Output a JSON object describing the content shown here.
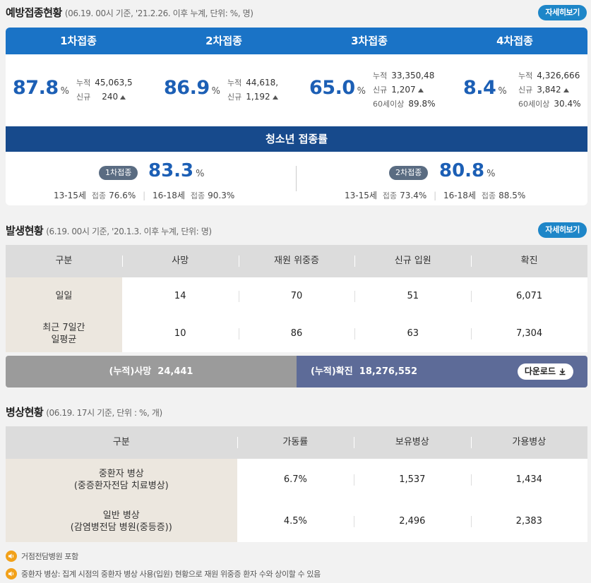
{
  "vaccination": {
    "title": "예방접종현황",
    "subtitle": "(06.19. 00시 기준, '21.2.26. 이후 누계, 단위: %, 명)",
    "detail_label": "자세히보기",
    "doses": [
      {
        "tab": "1차접종",
        "rate": "87.8",
        "unit": "%",
        "cum_label": "누적",
        "cum": "45,063,5",
        "new_label": "신규",
        "new": "240"
      },
      {
        "tab": "2차접종",
        "rate": "86.9",
        "unit": "%",
        "cum_label": "누적",
        "cum": "44,618,",
        "new_label": "신규",
        "new": "1,192"
      },
      {
        "tab": "3차접종",
        "rate": "65.0",
        "unit": "%",
        "cum_label": "누적",
        "cum": "33,350,48",
        "new_label": "신규",
        "new": "1,207",
        "sixty_label": "60세이상",
        "sixty": "89.8%"
      },
      {
        "tab": "4차접종",
        "rate": "8.4",
        "unit": "%",
        "cum_label": "누적",
        "cum": "4,326,666",
        "new_label": "신규",
        "new": "3,842",
        "sixty_label": "60세이상",
        "sixty": "30.4%"
      }
    ],
    "teen": {
      "title": "청소년 접종률",
      "first": {
        "badge": "1차접종",
        "rate": "83.3",
        "unit": "%",
        "age1": "13-15세",
        "age1_lbl": "접종",
        "age1_val": "76.6%",
        "age2": "16-18세",
        "age2_lbl": "접종",
        "age2_val": "90.3%"
      },
      "second": {
        "badge": "2차접종",
        "rate": "80.8",
        "unit": "%",
        "age1": "13-15세",
        "age1_lbl": "접종",
        "age1_val": "73.4%",
        "age2": "16-18세",
        "age2_lbl": "접종",
        "age2_val": "88.5%"
      }
    }
  },
  "outbreak": {
    "title": "발생현황",
    "subtitle": "(6.19. 00시 기준, '20.1.3. 이후 누계, 단위: 명)",
    "detail_label": "자세히보기",
    "headers": [
      "구분",
      "사망",
      "재원 위중증",
      "신규 입원",
      "확진"
    ],
    "rows": [
      {
        "label": "일일",
        "values": [
          "14",
          "70",
          "51",
          "6,071"
        ]
      },
      {
        "label": "최근 7일간\n일평균",
        "values": [
          "10",
          "86",
          "63",
          "7,304"
        ]
      }
    ],
    "total_death": "(누적)사망  24,441",
    "total_confirmed": "(누적)확진  18,276,552",
    "download_label": "다운로드"
  },
  "beds": {
    "title": "병상현황",
    "subtitle": "(06.19. 17시 기준, 단위 : %, 개)",
    "headers": [
      "구분",
      "가동률",
      "보유병상",
      "가용병상"
    ],
    "rows": [
      {
        "label": "중환자 병상\n(중증환자전담 치료병상)",
        "values": [
          "6.7%",
          "1,537",
          "1,434"
        ]
      },
      {
        "label": "일반 병상\n(감염병전담 병원(중등증))",
        "values": [
          "4.5%",
          "2,496",
          "2,383"
        ]
      }
    ]
  },
  "notes": [
    "거점전담병원 포함",
    "중환자 병상: 집계 시점의 중환자 병상 사용(입원) 현황으로 재원 위중증 환자 수와 상이할 수 있음"
  ],
  "colors": {
    "blue_tab": "#1a73c6",
    "teen_bar": "#174a8c",
    "rate_blue": "#1c5fb5",
    "detail_btn": "#1e86c8",
    "total_grey": "#9b9b9b",
    "total_navy": "#5d6b98"
  },
  "icons": {
    "note": "speaker-icon",
    "download": "download-icon",
    "increase": "triangle-up-icon"
  }
}
